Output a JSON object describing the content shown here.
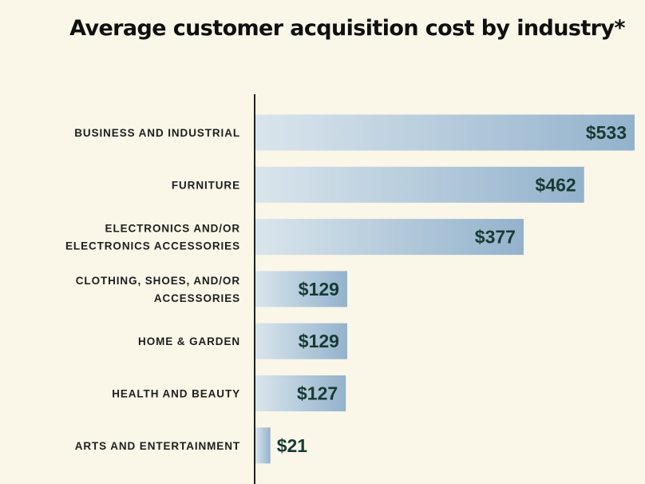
{
  "chart_data": {
    "type": "bar",
    "orientation": "horizontal",
    "title": "Average customer acquisition cost by industry*",
    "categories": [
      [
        "BUSINESS AND INDUSTRIAL"
      ],
      [
        "FURNITURE"
      ],
      [
        "ELECTRONICS AND/OR",
        "ELECTRONICS ACCESSORIES"
      ],
      [
        "CLOTHING, SHOES, AND/OR",
        "ACCESSORIES"
      ],
      [
        "HOME & GARDEN"
      ],
      [
        "HEALTH AND BEAUTY"
      ],
      [
        "ARTS AND ENTERTAINMENT"
      ]
    ],
    "values": [
      533,
      462,
      377,
      129,
      129,
      127,
      21
    ],
    "value_labels": [
      "$533",
      "$462",
      "$377",
      "$129",
      "$129",
      "$127",
      "$21"
    ],
    "xlim": [
      0,
      533
    ],
    "grid": false,
    "legend": "none",
    "colors": {
      "background": "#faf6e8",
      "bar_start": "#d9e5ec",
      "bar_end": "#93b2cc",
      "value_text": "#173a33",
      "axis": "#222222"
    }
  }
}
